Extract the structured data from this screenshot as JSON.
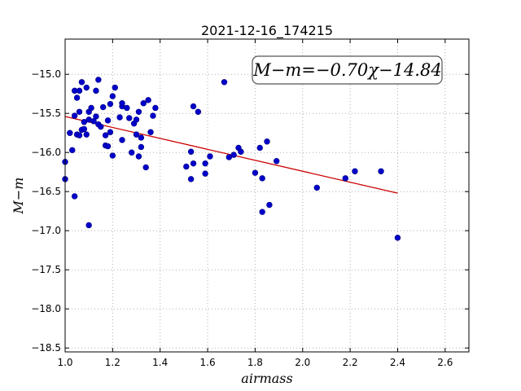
{
  "chart_data": {
    "type": "scatter",
    "title": "2021-12-16_174215",
    "xlabel": "airmass",
    "ylabel": "M−m",
    "xlim": [
      1.0,
      2.7
    ],
    "ylim": [
      -18.55,
      -14.55
    ],
    "y_inverted": true,
    "grid": true,
    "x_ticks": [
      1.0,
      1.2,
      1.4,
      1.6,
      1.8,
      2.0,
      2.2,
      2.4,
      2.6
    ],
    "x_tick_labels": [
      "1.0",
      "1.2",
      "1.4",
      "1.6",
      "1.8",
      "2.0",
      "2.2",
      "2.4",
      "2.6"
    ],
    "y_ticks": [
      -15.0,
      -15.5,
      -16.0,
      -16.5,
      -17.0,
      -17.5,
      -18.0,
      -18.5
    ],
    "y_tick_labels": [
      "−15.0",
      "−15.5",
      "−16.0",
      "−16.5",
      "−17.0",
      "−17.5",
      "−18.0",
      "−18.5"
    ],
    "annotation": "M−m=−0.70χ−14.84",
    "annotation_position": "top-right",
    "colors": {
      "points": "#0000cc",
      "fit": "#cc0000",
      "grid": "#b0b0b0"
    },
    "fit": {
      "slope": -0.7,
      "intercept": -14.84,
      "x_range": [
        1.0,
        2.4
      ]
    },
    "points": [
      {
        "x": 1.0,
        "y": -16.12
      },
      {
        "x": 1.0,
        "y": -16.34
      },
      {
        "x": 1.02,
        "y": -15.75
      },
      {
        "x": 1.03,
        "y": -15.97
      },
      {
        "x": 1.04,
        "y": -15.21
      },
      {
        "x": 1.04,
        "y": -15.53
      },
      {
        "x": 1.04,
        "y": -16.56
      },
      {
        "x": 1.05,
        "y": -15.3
      },
      {
        "x": 1.05,
        "y": -15.77
      },
      {
        "x": 1.06,
        "y": -15.21
      },
      {
        "x": 1.06,
        "y": -15.48
      },
      {
        "x": 1.06,
        "y": -15.78
      },
      {
        "x": 1.07,
        "y": -15.1
      },
      {
        "x": 1.07,
        "y": -15.71
      },
      {
        "x": 1.08,
        "y": -15.7
      },
      {
        "x": 1.08,
        "y": -15.61
      },
      {
        "x": 1.09,
        "y": -15.17
      },
      {
        "x": 1.09,
        "y": -15.77
      },
      {
        "x": 1.1,
        "y": -15.58
      },
      {
        "x": 1.1,
        "y": -15.48
      },
      {
        "x": 1.1,
        "y": -16.93
      },
      {
        "x": 1.11,
        "y": -15.43
      },
      {
        "x": 1.12,
        "y": -15.6
      },
      {
        "x": 1.13,
        "y": -15.21
      },
      {
        "x": 1.13,
        "y": -15.54
      },
      {
        "x": 1.14,
        "y": -15.07
      },
      {
        "x": 1.14,
        "y": -15.64
      },
      {
        "x": 1.15,
        "y": -15.67
      },
      {
        "x": 1.16,
        "y": -15.42
      },
      {
        "x": 1.17,
        "y": -15.91
      },
      {
        "x": 1.17,
        "y": -15.78
      },
      {
        "x": 1.18,
        "y": -15.92
      },
      {
        "x": 1.18,
        "y": -15.59
      },
      {
        "x": 1.19,
        "y": -15.38
      },
      {
        "x": 1.19,
        "y": -15.74
      },
      {
        "x": 1.2,
        "y": -15.28
      },
      {
        "x": 1.2,
        "y": -16.04
      },
      {
        "x": 1.21,
        "y": -15.17
      },
      {
        "x": 1.23,
        "y": -15.55
      },
      {
        "x": 1.24,
        "y": -15.41
      },
      {
        "x": 1.24,
        "y": -15.37
      },
      {
        "x": 1.24,
        "y": -15.84
      },
      {
        "x": 1.26,
        "y": -15.43
      },
      {
        "x": 1.27,
        "y": -15.56
      },
      {
        "x": 1.28,
        "y": -16.0
      },
      {
        "x": 1.29,
        "y": -15.63
      },
      {
        "x": 1.3,
        "y": -15.58
      },
      {
        "x": 1.3,
        "y": -15.77
      },
      {
        "x": 1.31,
        "y": -16.05
      },
      {
        "x": 1.31,
        "y": -15.48
      },
      {
        "x": 1.32,
        "y": -15.81
      },
      {
        "x": 1.32,
        "y": -15.93
      },
      {
        "x": 1.33,
        "y": -15.37
      },
      {
        "x": 1.34,
        "y": -16.19
      },
      {
        "x": 1.35,
        "y": -15.33
      },
      {
        "x": 1.36,
        "y": -15.74
      },
      {
        "x": 1.37,
        "y": -15.53
      },
      {
        "x": 1.38,
        "y": -15.43
      },
      {
        "x": 1.51,
        "y": -16.18
      },
      {
        "x": 1.53,
        "y": -15.99
      },
      {
        "x": 1.53,
        "y": -16.34
      },
      {
        "x": 1.54,
        "y": -15.41
      },
      {
        "x": 1.54,
        "y": -16.14
      },
      {
        "x": 1.56,
        "y": -15.48
      },
      {
        "x": 1.59,
        "y": -16.27
      },
      {
        "x": 1.59,
        "y": -16.14
      },
      {
        "x": 1.61,
        "y": -16.05
      },
      {
        "x": 1.67,
        "y": -15.1
      },
      {
        "x": 1.69,
        "y": -16.06
      },
      {
        "x": 1.71,
        "y": -16.03
      },
      {
        "x": 1.73,
        "y": -15.94
      },
      {
        "x": 1.74,
        "y": -15.99
      },
      {
        "x": 1.8,
        "y": -16.26
      },
      {
        "x": 1.82,
        "y": -15.94
      },
      {
        "x": 1.83,
        "y": -16.76
      },
      {
        "x": 1.83,
        "y": -16.33
      },
      {
        "x": 1.85,
        "y": -15.86
      },
      {
        "x": 1.86,
        "y": -16.67
      },
      {
        "x": 1.89,
        "y": -16.11
      },
      {
        "x": 2.06,
        "y": -16.45
      },
      {
        "x": 2.18,
        "y": -16.33
      },
      {
        "x": 2.22,
        "y": -16.24
      },
      {
        "x": 2.33,
        "y": -16.24
      },
      {
        "x": 2.4,
        "y": -17.09
      }
    ]
  }
}
